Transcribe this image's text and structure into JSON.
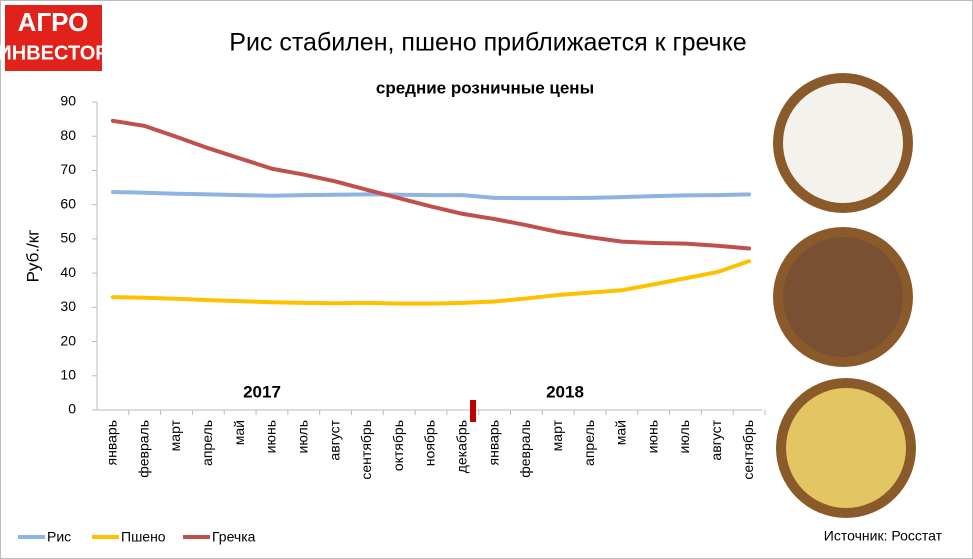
{
  "logo": [
    "АГРО",
    "ИНВЕСТОР"
  ],
  "chart_data": {
    "type": "line",
    "title": "Рис стабилен, пшено приближается к гречке",
    "subtitle": "средние розничные цены",
    "y_label": "Руб./кг",
    "annotations": [
      "2017",
      "2018"
    ],
    "source": "Источник: Росстат",
    "categories": [
      "январь",
      "февраль",
      "март",
      "апрель",
      "май",
      "июнь",
      "июль",
      "август",
      "сентябрь",
      "октябрь",
      "ноябрь",
      "декабрь",
      "январь",
      "февраль",
      "март",
      "апрель",
      "май",
      "июнь",
      "июль",
      "август",
      "сентябрь"
    ],
    "series": [
      {
        "name": "Рис",
        "color": "#8eb4e3",
        "values": [
          63.7,
          63.5,
          63.2,
          63,
          62.8,
          62.6,
          62.8,
          62.9,
          63,
          62.9,
          62.8,
          62.8,
          62,
          61.9,
          61.9,
          62,
          62.2,
          62.5,
          62.7,
          62.8,
          63
        ]
      },
      {
        "name": "Пшено",
        "color": "#ffc000",
        "values": [
          33,
          32.8,
          32.5,
          32.1,
          31.8,
          31.5,
          31.3,
          31.2,
          31.3,
          31.1,
          31.1,
          31.3,
          31.7,
          32.6,
          33.6,
          34.3,
          35,
          36.7,
          38.5,
          40.3,
          43.5
        ]
      },
      {
        "name": "Гречка",
        "color": "#c0504d",
        "values": [
          84.5,
          83,
          79.8,
          76.5,
          73.5,
          70.5,
          68.8,
          66.8,
          64.3,
          61.9,
          59.5,
          57.3,
          55.8,
          54,
          52,
          50.5,
          49.2,
          48.8,
          48.6,
          48,
          47.2
        ]
      }
    ],
    "ylim": [
      0,
      90
    ],
    "yticks": [
      0,
      10,
      20,
      30,
      40,
      50,
      60,
      70,
      80,
      90
    ],
    "grid": false,
    "legend": "bottom"
  }
}
